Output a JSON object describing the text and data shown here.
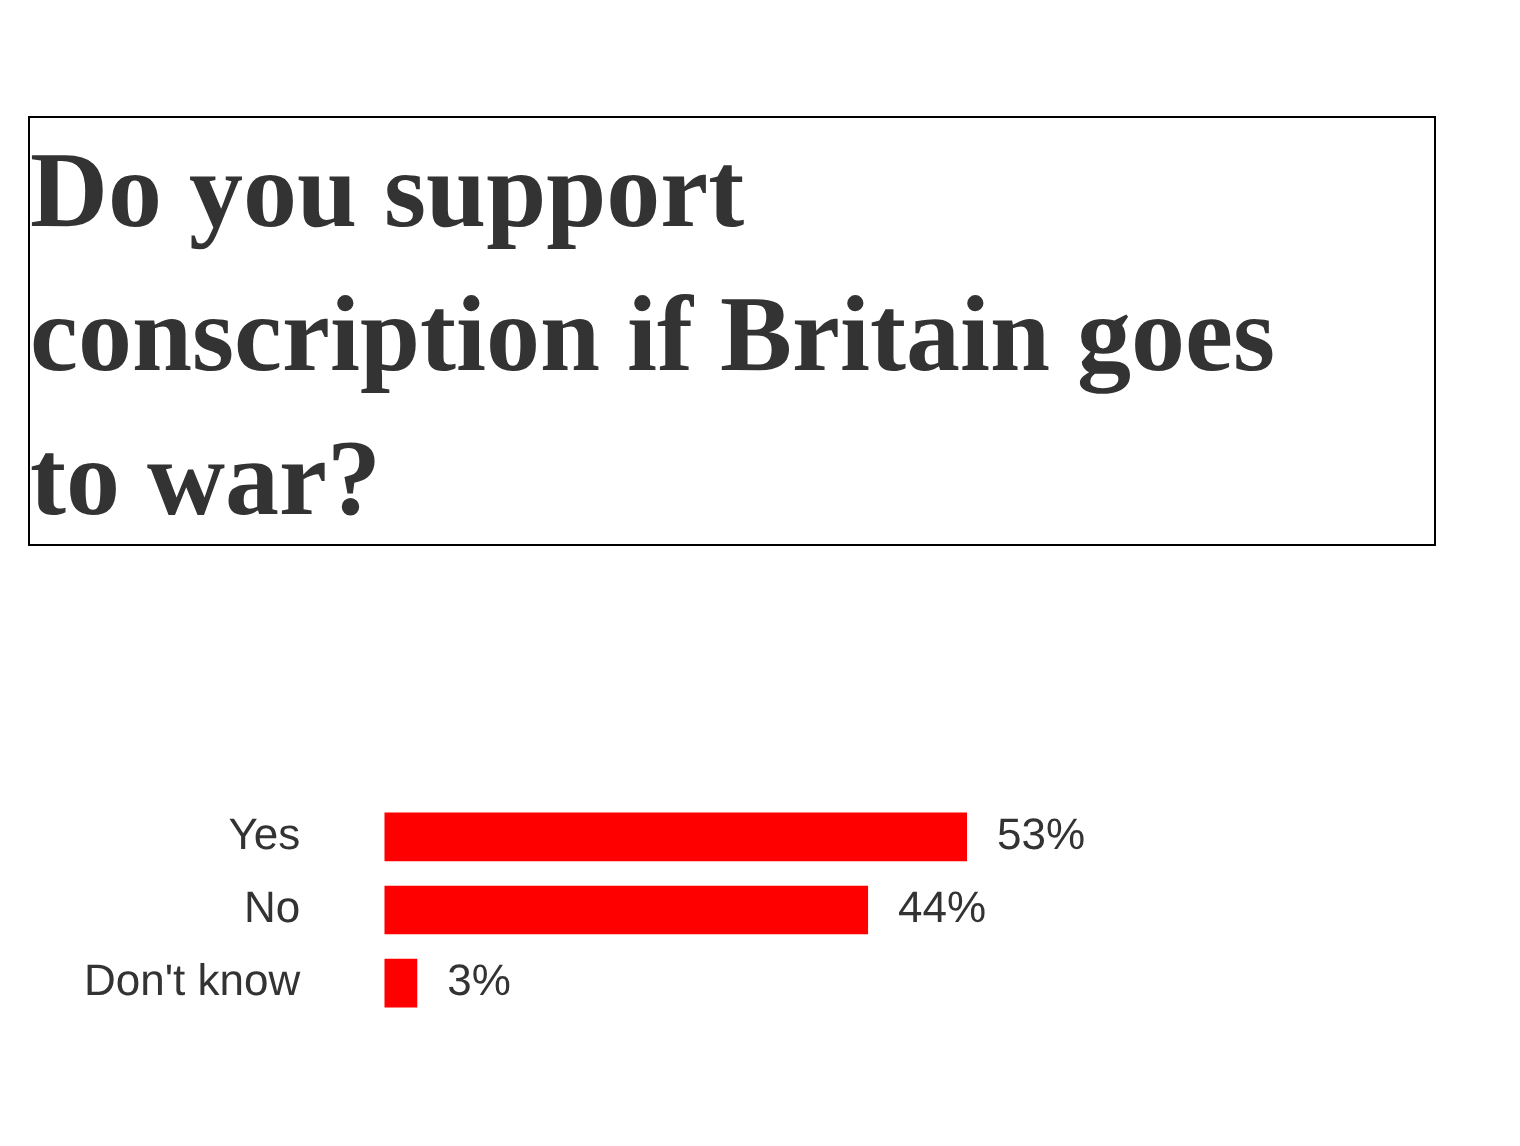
{
  "chart_data": {
    "type": "bar",
    "orientation": "horizontal",
    "title": "Do you support conscription if Britain goes to war?",
    "categories": [
      "Yes",
      "No",
      "Don't know"
    ],
    "values": [
      53,
      44,
      3
    ],
    "value_labels": [
      "53%",
      "44%",
      "3%"
    ],
    "color": "#ff0000"
  }
}
